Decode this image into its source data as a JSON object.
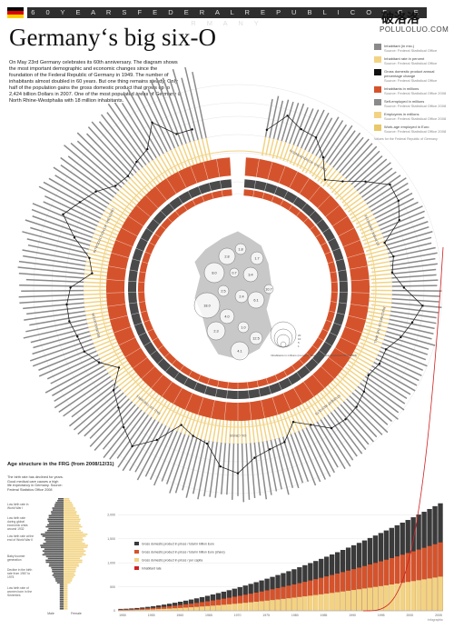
{
  "header": {
    "banner": "6 0   Y E A R S   F E D E R A L   R E P U B L I C   O F   G E R M A N Y",
    "title": "Germany‘s big six-O",
    "intro": "On May 23rd Germany celebrates its 60th anniversary. The diagram shows the most important demographic and economic changes since the foundation of the Federal Republic of Germany in 1949. The number of inhabitants almost doubled in 60 years. But one thing remains steady: Only half of the population gains the gross domestic product that grows up to 2,424 billion Dollars in 2007. One of the most populated areas of Germany is North Rhine-Westphalia with 18 million inhabitants."
  },
  "watermark": {
    "zh": "破洛洛",
    "en": "POLULOLUO.COM"
  },
  "flag_colors": [
    "#000000",
    "#dd0000",
    "#ffce00"
  ],
  "colors": {
    "gray": "#8a8a8a",
    "dark": "#4a4a4a",
    "yellow": "#f2d383",
    "orange": "#d5532c",
    "map": "#c8c8c8",
    "line": "#111111"
  },
  "legend": {
    "items": [
      {
        "label": "Inhabitant (in mio.)",
        "source": "Source: Federal Statistical Office",
        "color": "#8a8a8a"
      },
      {
        "label": "Inhabitant rate in percent",
        "source": "Source: Federal Statistical Office",
        "color": "#f2d383"
      },
      {
        "label": "Gross domestic product annual percentage change",
        "source": "Source: Federal Statistical Office",
        "color": "#111111"
      },
      {
        "label": "Inhabitants in millions",
        "source": "Source: Federal Statistical Office 2008",
        "color": "#d5532c"
      },
      {
        "label": "Self-employed in millions",
        "source": "Source: Federal Statistical Office 2008",
        "color": "#8a8a8a"
      },
      {
        "label": "Employees in millions",
        "source": "Source: Federal Statistical Office 2008",
        "color": "#f2d383"
      },
      {
        "label": "Work-age employed in Euro",
        "source": "Source: Federal Statistical Office 2008",
        "color": "#e8c868"
      }
    ],
    "note": "Values for the Federal Republic of Germany"
  },
  "pyramid": {
    "title": "Age structure in the FRG (from 2008/12/31)",
    "desc": "The birth rate has declined for years. Good medical care causes a high life expectancy in Germany. Source: Federal Statistics Office 2008",
    "annotations": [
      "Low birth rate in World War I",
      "Low birth rate during global economic crisis around 1932",
      "Low birth rate at the end of World War II",
      "Baby boomer generation",
      "Decline in the birth rate from 1967 to 1975",
      "Low birth rate of women born in the Seventies"
    ],
    "male_label": "Male",
    "female_label": "Female"
  },
  "map": {
    "note": "Inhabitants in millions (rounded) Source: Federal Statistical Office 2008",
    "state_values": [
      "2.8",
      "1.8",
      "1.7",
      "8.0",
      "0.7",
      "3.4",
      "2.5",
      "18.0",
      "2.4",
      "6.1",
      "4.0",
      "2.3",
      "1.0",
      "4.1",
      "12.5",
      "10.7"
    ],
    "bubble_scale": [
      "20",
      "10",
      "5",
      "1"
    ]
  },
  "ring_labels": [
    "FOUNDATION OF THE FRG",
    "ECONOMIC MIRACLE",
    "BUILDING OF THE WALL",
    "STUDENT REVOLTS",
    "OIL CRISIS",
    "FALL OF THE WALL",
    "REUNIFICATION",
    "INTRODUCTION OF THE EURO"
  ],
  "chart_data": [
    {
      "type": "bar",
      "title": "",
      "xlabel": "",
      "ylabel": "",
      "categories": [
        "1950",
        "1955",
        "1960",
        "1965",
        "1970",
        "1975",
        "1980",
        "1985",
        "1990",
        "1995",
        "2000",
        "2005"
      ],
      "series": [
        {
          "name": "Gross domestic product in prices / total in billion Euro",
          "values": [
            50,
            90,
            150,
            230,
            340,
            520,
            740,
            950,
            1250,
            1800,
            2060,
            2240
          ]
        },
        {
          "name": "Gross domestic product in prices / total in billion Euro (share)",
          "values": [
            30,
            55,
            90,
            140,
            210,
            320,
            460,
            600,
            800,
            1150,
            1330,
            1450
          ]
        },
        {
          "name": "Gross domestic product in prices / per capita",
          "values": [
            15,
            28,
            45,
            70,
            105,
            160,
            230,
            300,
            400,
            580,
            680,
            720
          ]
        }
      ],
      "overlay_line": {
        "name": "Inhabitant rate",
        "values": [
          3,
          4,
          5,
          6,
          8,
          10,
          14,
          20,
          35,
          80,
          180,
          400
        ]
      },
      "y_ticks": [
        "0",
        "500",
        "1,000",
        "1,500",
        "2,000"
      ],
      "ylim": [
        0,
        2500
      ]
    }
  ]
}
